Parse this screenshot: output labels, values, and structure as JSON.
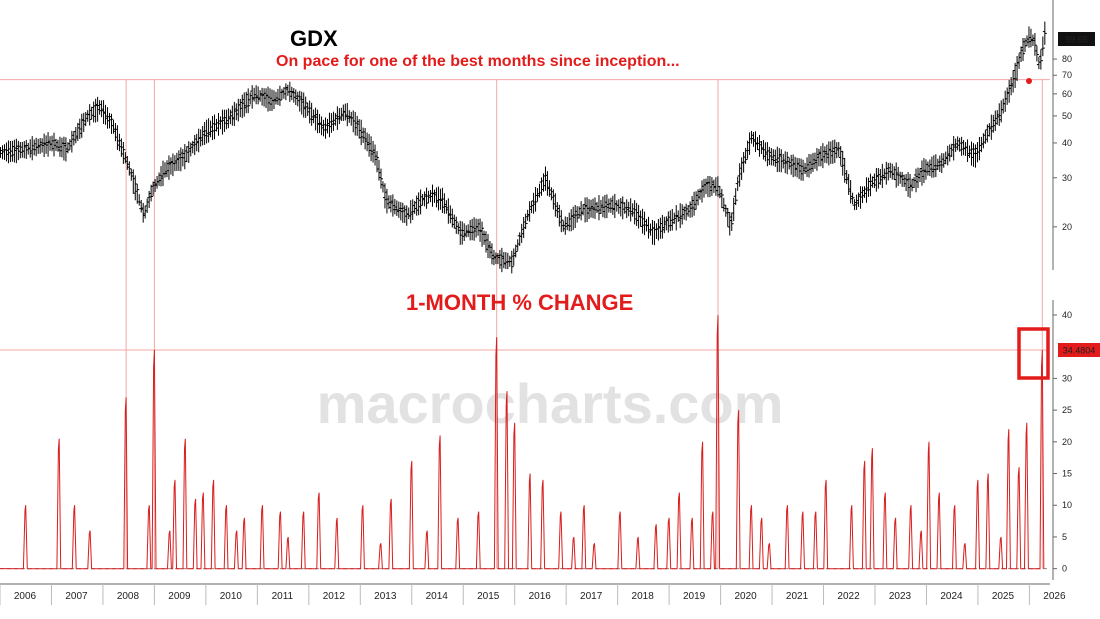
{
  "colors": {
    "price": "#000000",
    "change": "#d81e1e",
    "guide": "#f3a6a6",
    "axis": "#666666",
    "title_red": "#e31b1b",
    "watermark": "#e2e2e2",
    "tag_bg": "#111111",
    "tag_change_bg": "#e31b1b"
  },
  "watermark": "macrocharts.com",
  "chart_data": [
    {
      "type": "ohlc",
      "title": "GDX",
      "subtitle": "On pace for one of the best months since inception...",
      "scale": "log",
      "ylim": [
        14,
        120
      ],
      "yticks": [
        20,
        30,
        40,
        50,
        60,
        70,
        80
      ],
      "last_value_label": "99.65",
      "last_value": 99.65,
      "reference_level": 67.5,
      "x_start": 2006.0,
      "x_end": 2026.4,
      "xticks": [
        "2006",
        "2007",
        "2008",
        "2009",
        "2010",
        "2011",
        "2012",
        "2013",
        "2014",
        "2015",
        "2016",
        "2017",
        "2018",
        "2019",
        "2020",
        "2021",
        "2022",
        "2023",
        "2024",
        "2025",
        "2026"
      ],
      "anchors": [
        [
          2006.0,
          37
        ],
        [
          2006.5,
          38
        ],
        [
          2007.0,
          40
        ],
        [
          2007.3,
          38
        ],
        [
          2007.7,
          50
        ],
        [
          2007.95,
          54
        ],
        [
          2008.2,
          46
        ],
        [
          2008.5,
          33
        ],
        [
          2008.8,
          22
        ],
        [
          2008.95,
          27
        ],
        [
          2009.2,
          32
        ],
        [
          2009.6,
          36
        ],
        [
          2010.0,
          44
        ],
        [
          2010.5,
          50
        ],
        [
          2010.95,
          60
        ],
        [
          2011.3,
          57
        ],
        [
          2011.6,
          62
        ],
        [
          2011.9,
          55
        ],
        [
          2012.3,
          45
        ],
        [
          2012.7,
          52
        ],
        [
          2012.95,
          46
        ],
        [
          2013.3,
          36
        ],
        [
          2013.5,
          25
        ],
        [
          2013.9,
          22
        ],
        [
          2014.2,
          25
        ],
        [
          2014.4,
          26
        ],
        [
          2014.6,
          25
        ],
        [
          2014.95,
          19
        ],
        [
          2015.3,
          20
        ],
        [
          2015.6,
          15.5
        ],
        [
          2015.95,
          15
        ],
        [
          2016.25,
          22
        ],
        [
          2016.6,
          30
        ],
        [
          2016.95,
          20
        ],
        [
          2017.3,
          23
        ],
        [
          2017.9,
          24
        ],
        [
          2018.3,
          23
        ],
        [
          2018.7,
          19
        ],
        [
          2019.0,
          21
        ],
        [
          2019.4,
          23
        ],
        [
          2019.7,
          28
        ],
        [
          2019.95,
          28
        ],
        [
          2020.2,
          20
        ],
        [
          2020.35,
          30
        ],
        [
          2020.6,
          42
        ],
        [
          2020.95,
          36
        ],
        [
          2021.3,
          34
        ],
        [
          2021.6,
          32
        ],
        [
          2021.95,
          36
        ],
        [
          2022.3,
          38
        ],
        [
          2022.6,
          24
        ],
        [
          2022.95,
          29
        ],
        [
          2023.3,
          32
        ],
        [
          2023.7,
          28
        ],
        [
          2023.95,
          32
        ],
        [
          2024.3,
          34
        ],
        [
          2024.6,
          40
        ],
        [
          2024.95,
          36
        ],
        [
          2025.2,
          44
        ],
        [
          2025.45,
          52
        ],
        [
          2025.7,
          68
        ],
        [
          2025.85,
          85
        ],
        [
          2026.0,
          97
        ],
        [
          2026.1,
          92
        ],
        [
          2026.2,
          75
        ],
        [
          2026.3,
          99.65
        ]
      ]
    },
    {
      "type": "line",
      "title": "1-MONTH % CHANGE",
      "ylim": [
        -1,
        40
      ],
      "yticks": [
        0,
        5,
        10,
        15,
        20,
        25,
        30,
        40
      ],
      "last_value_label": "34.4804",
      "last_value": 34.4804,
      "baseline": 0,
      "x_start": 2006.0,
      "x_step": 0.0833,
      "values": [
        0,
        4,
        0,
        0,
        6,
        10,
        0,
        0,
        0,
        0,
        0,
        1,
        0,
        0,
        0,
        0,
        0,
        0,
        5,
        0,
        0,
        20,
        13,
        5,
        0,
        0,
        0,
        9,
        6,
        0,
        0,
        0,
        0,
        7,
        6,
        0,
        0,
        0,
        0,
        0,
        0,
        0,
        0,
        0,
        0,
        26,
        27,
        0,
        0,
        0,
        0,
        0,
        10,
        0,
        0,
        34,
        0,
        0,
        0,
        3,
        0,
        0,
        14,
        0,
        20,
        0,
        0,
        0,
        4,
        0,
        0,
        3,
        13,
        6,
        0,
        0,
        0,
        9,
        4,
        0,
        0,
        0,
        11,
        0,
        0,
        0,
        6,
        4,
        3,
        4,
        4,
        0,
        0,
        0,
        0,
        0,
        4,
        10,
        5,
        0,
        0,
        4,
        0,
        0,
        0,
        0,
        0,
        0,
        0,
        9,
        0,
        0,
        0,
        0,
        0,
        11,
        11,
        0,
        0,
        0,
        0,
        0,
        0,
        0,
        0,
        0,
        0,
        0,
        0,
        0,
        0,
        0,
        0,
        10,
        0,
        0,
        0,
        0,
        0,
        0,
        0,
        0,
        0,
        0,
        0,
        0,
        9,
        0,
        0,
        0,
        0,
        0,
        0,
        0,
        0,
        0,
        17,
        0,
        0,
        0,
        0,
        0,
        0,
        0,
        0,
        0,
        0,
        0,
        0,
        0,
        2,
        0,
        0,
        0,
        21,
        0,
        0,
        0,
        0,
        0,
        0,
        0,
        0,
        0,
        0,
        0,
        8,
        36,
        0,
        0,
        28,
        23,
        14,
        0,
        0,
        0,
        0,
        0,
        0,
        0,
        0,
        0,
        0,
        0,
        0,
        0,
        0,
        0,
        0,
        15,
        0,
        0,
        0,
        0,
        0,
        0,
        0,
        0,
        0,
        0,
        0,
        0,
        0,
        0,
        0,
        0,
        0,
        0,
        0,
        0,
        0,
        0,
        0,
        0,
        0,
        0,
        0,
        0,
        0,
        0,
        0,
        0,
        0,
        0,
        0,
        0,
        0,
        0,
        0,
        0,
        0,
        0,
        0,
        0,
        0,
        0,
        0,
        0,
        0,
        0,
        0,
        0,
        0,
        0,
        0,
        0,
        0,
        0,
        0,
        0,
        0,
        0,
        0,
        0,
        0,
        0,
        0,
        0,
        0,
        0,
        0,
        0,
        0,
        0,
        0,
        0,
        0,
        0,
        0,
        0,
        0,
        0,
        0,
        0,
        0,
        0,
        0,
        0,
        0,
        0,
        0,
        0,
        0,
        0,
        34.48
      ],
      "spikes": [
        [
          2006.5,
          10
        ],
        [
          2007.15,
          20.5
        ],
        [
          2007.45,
          10
        ],
        [
          2007.75,
          6
        ],
        [
          2008.45,
          27
        ],
        [
          2008.9,
          10
        ],
        [
          2009.0,
          34.5
        ],
        [
          2009.3,
          6
        ],
        [
          2009.4,
          14
        ],
        [
          2009.6,
          20.5
        ],
        [
          2009.8,
          11
        ],
        [
          2009.95,
          12
        ],
        [
          2010.15,
          14
        ],
        [
          2010.4,
          10
        ],
        [
          2010.6,
          6
        ],
        [
          2010.75,
          8
        ],
        [
          2011.1,
          10
        ],
        [
          2011.45,
          9
        ],
        [
          2011.6,
          5
        ],
        [
          2011.9,
          9
        ],
        [
          2012.2,
          12
        ],
        [
          2012.55,
          8
        ],
        [
          2013.05,
          10
        ],
        [
          2013.4,
          4
        ],
        [
          2013.6,
          11
        ],
        [
          2014.0,
          17
        ],
        [
          2014.3,
          6
        ],
        [
          2014.55,
          21
        ],
        [
          2014.9,
          8
        ],
        [
          2015.3,
          9
        ],
        [
          2015.65,
          36.5
        ],
        [
          2015.85,
          28
        ],
        [
          2016.0,
          23
        ],
        [
          2016.3,
          15
        ],
        [
          2016.55,
          14
        ],
        [
          2016.9,
          9
        ],
        [
          2017.15,
          5
        ],
        [
          2017.35,
          10
        ],
        [
          2017.55,
          4
        ],
        [
          2018.05,
          9
        ],
        [
          2018.4,
          5
        ],
        [
          2018.75,
          7
        ],
        [
          2019.0,
          8
        ],
        [
          2019.2,
          12
        ],
        [
          2019.45,
          8
        ],
        [
          2019.65,
          20
        ],
        [
          2019.85,
          9
        ],
        [
          2019.95,
          40
        ],
        [
          2020.35,
          25
        ],
        [
          2020.6,
          10
        ],
        [
          2020.8,
          8
        ],
        [
          2020.95,
          4
        ],
        [
          2021.3,
          10
        ],
        [
          2021.6,
          9
        ],
        [
          2021.85,
          9
        ],
        [
          2022.05,
          14
        ],
        [
          2022.55,
          10
        ],
        [
          2022.8,
          17
        ],
        [
          2022.95,
          19
        ],
        [
          2023.2,
          12
        ],
        [
          2023.4,
          8
        ],
        [
          2023.7,
          10
        ],
        [
          2023.9,
          6
        ],
        [
          2024.05,
          20
        ],
        [
          2024.25,
          12
        ],
        [
          2024.55,
          10
        ],
        [
          2024.75,
          4
        ],
        [
          2025.0,
          14
        ],
        [
          2025.2,
          15
        ],
        [
          2025.45,
          5
        ],
        [
          2025.6,
          22
        ],
        [
          2025.8,
          16
        ],
        [
          2025.95,
          23
        ],
        [
          2026.25,
          34.48
        ]
      ]
    }
  ]
}
